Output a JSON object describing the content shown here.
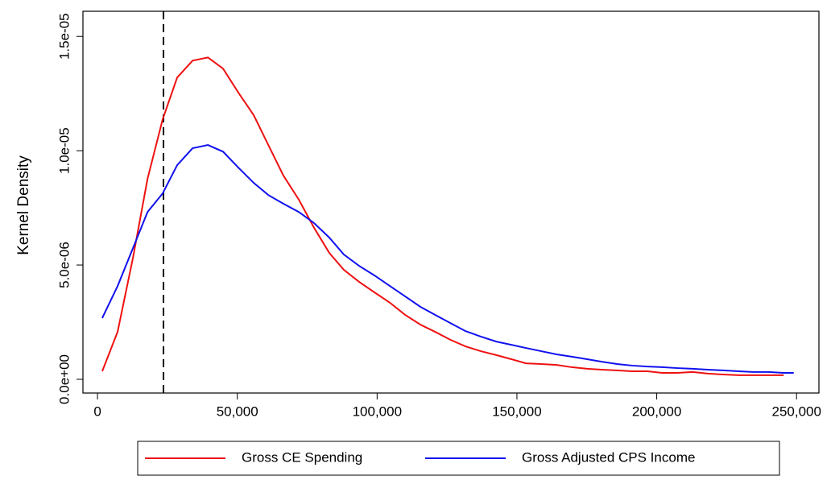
{
  "chart_data": {
    "type": "line",
    "y_label": "Kernel Density",
    "x": [
      1700,
      7200,
      12700,
      17900,
      23300,
      28500,
      34000,
      39500,
      44900,
      50400,
      55900,
      61100,
      66500,
      72000,
      77500,
      82900,
      88100,
      93600,
      99100,
      104600,
      110000,
      115500,
      120700,
      126200,
      131600,
      137100,
      142600,
      148000,
      153200,
      158700,
      164200,
      169600,
      175100,
      180300,
      185800,
      191200,
      196700,
      201900,
      207400,
      212800,
      218300,
      223800,
      229300,
      234400,
      239900,
      245400,
      249000
    ],
    "series": [
      {
        "name": "Gross CE Spending",
        "color": "#ee1111",
        "values": [
          3.5e-07,
          2.08e-06,
          5.32e-06,
          8.77e-06,
          1.137e-05,
          1.32e-05,
          1.394e-05,
          1.408e-05,
          1.359e-05,
          1.254e-05,
          1.155e-05,
          1.025e-05,
          8.91e-06,
          7.86e-06,
          6.62e-06,
          5.53e-06,
          4.79e-06,
          4.26e-06,
          3.8e-06,
          3.35e-06,
          2.82e-06,
          2.39e-06,
          2.08e-06,
          1.73e-06,
          1.44e-06,
          1.23e-06,
          1.06e-06,
          8.8e-07,
          7e-07,
          6.7e-07,
          6.3e-07,
          5.3e-07,
          4.6e-07,
          4.2e-07,
          3.9e-07,
          3.5e-07,
          3.5e-07,
          2.8e-07,
          2.8e-07,
          3.2e-07,
          2.5e-07,
          2.1e-07,
          1.8e-07,
          1.8e-07,
          1.8e-07,
          1.8e-07,
          null
        ]
      },
      {
        "name": "Gross Adjusted CPS Income",
        "color": "#1111ee",
        "values": [
          2.68e-06,
          4.08e-06,
          5.74e-06,
          7.32e-06,
          8.13e-06,
          9.37e-06,
          1.011e-05,
          1.025e-05,
          9.96e-06,
          9.26e-06,
          8.59e-06,
          8.06e-06,
          7.68e-06,
          7.32e-06,
          6.83e-06,
          6.2e-06,
          5.46e-06,
          4.96e-06,
          4.54e-06,
          4.08e-06,
          3.63e-06,
          3.17e-06,
          2.82e-06,
          2.46e-06,
          2.11e-06,
          1.87e-06,
          1.65e-06,
          1.51e-06,
          1.37e-06,
          1.23e-06,
          1.09e-06,
          9.9e-07,
          8.8e-07,
          7.7e-07,
          6.7e-07,
          6e-07,
          5.6e-07,
          5.3e-07,
          4.9e-07,
          4.6e-07,
          4.2e-07,
          3.9e-07,
          3.5e-07,
          3.2e-07,
          3.2e-07,
          2.8e-07,
          2.8e-07
        ]
      }
    ],
    "vline": 23600,
    "xlim": [
      -5200,
      258000
    ],
    "xticks": [
      0,
      {
        "value": 50000,
        "label": "50,000"
      },
      {
        "value": 100000,
        "label": "100,000"
      },
      {
        "value": 150000,
        "label": "150,000"
      },
      {
        "value": 200000,
        "label": "200,000"
      },
      {
        "value": 250000,
        "label": "250,000"
      }
    ],
    "ylim": [
      -6e-07,
      1.61e-05
    ],
    "yticks": [
      {
        "value": 0,
        "label": "0.0e+00"
      },
      {
        "value": 5e-06,
        "label": "5.0e-06"
      },
      {
        "value": 1e-05,
        "label": "1.0e-05"
      },
      {
        "value": 1.5e-05,
        "label": "1.5e-05"
      }
    ],
    "legend": "bottom"
  }
}
